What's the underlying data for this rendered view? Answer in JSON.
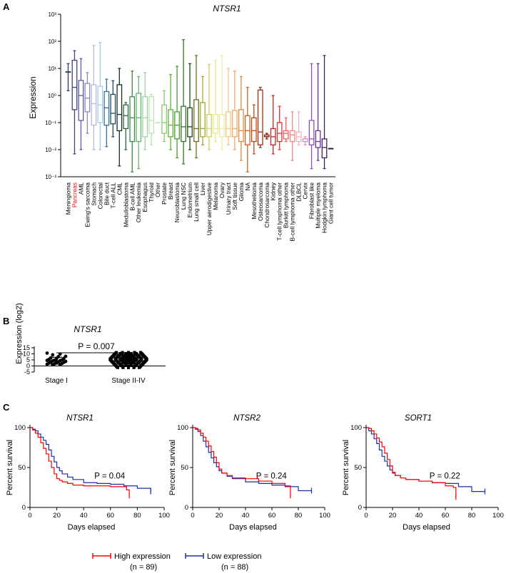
{
  "panel_labels": {
    "a": "A",
    "b": "B",
    "c": "C"
  },
  "chart_data": [
    {
      "type": "box",
      "title": "NTSR1",
      "ylabel": "Expression",
      "yscale": "log",
      "ylim": [
        0.001,
        1000
      ],
      "yticks": [
        "10⁻³",
        "10⁻²",
        "10⁻¹",
        "10⁰",
        "10¹",
        "10²",
        "10³"
      ],
      "highlight_category": "Pancreas",
      "highlight_color": "#ff0000",
      "categories": [
        {
          "name": "Meningioma",
          "color": "#2b3b5c",
          "min": 1.5,
          "q1": 7.5,
          "med": 7.5,
          "q3": 7.5,
          "max": 15
        },
        {
          "name": "Pancreas",
          "color": "#404080",
          "min": 0.007,
          "q1": 0.3,
          "med": 2,
          "q3": 20,
          "max": 45
        },
        {
          "name": "AML",
          "color": "#5c5a9a",
          "min": 0.01,
          "q1": 0.12,
          "med": 1.0,
          "q3": 3.6,
          "max": 23
        },
        {
          "name": "Ewing's sarcoma",
          "color": "#8a88c0",
          "min": 0.04,
          "q1": 0.25,
          "med": 0.8,
          "q3": 2.8,
          "max": 7
        },
        {
          "name": "Stomach",
          "color": "#b8b8e0",
          "min": 0.01,
          "q1": 0.08,
          "med": 0.5,
          "q3": 2.5,
          "max": 70
        },
        {
          "name": "Colorectal",
          "color": "#a8c8e8",
          "min": 0.01,
          "q1": 0.1,
          "med": 0.45,
          "q3": 2.2,
          "max": 90
        },
        {
          "name": "Bile duct",
          "color": "#2f6fa0",
          "min": 0.013,
          "q1": 0.08,
          "med": 0.35,
          "q3": 1.4,
          "max": 4
        },
        {
          "name": "T-cell ALL",
          "color": "#1f4a5f",
          "min": 0.03,
          "q1": 0.09,
          "med": 0.22,
          "q3": 1.1,
          "max": 3.5
        },
        {
          "name": "CML",
          "color": "#143020",
          "min": 0.0025,
          "q1": 0.05,
          "med": 0.2,
          "q3": 2.5,
          "max": 10
        },
        {
          "name": "Medulloblastoma",
          "color": "#2a6a3a",
          "min": 0.01,
          "q1": 0.06,
          "med": 0.18,
          "q3": 0.45,
          "max": 0.55
        },
        {
          "name": "B-cell AML",
          "color": "#3a8a4a",
          "min": 0.0015,
          "q1": 0.02,
          "med": 0.15,
          "q3": 0.9,
          "max": 8
        },
        {
          "name": "Other leukemia",
          "color": "#6ab070",
          "min": 0.002,
          "q1": 0.02,
          "med": 0.15,
          "q3": 1.2,
          "max": 5
        },
        {
          "name": "Esophagus",
          "color": "#9fd4a0",
          "min": 0.01,
          "q1": 0.03,
          "med": 0.15,
          "q3": 0.9,
          "max": 7
        },
        {
          "name": "Thyroid",
          "color": "#b8e4b0",
          "min": 0.015,
          "q1": 0.04,
          "med": 0.12,
          "q3": 0.9,
          "max": 1.1
        },
        {
          "name": "Other",
          "color": "#c8e8c0",
          "min": 0.1,
          "q1": 0.1,
          "med": 0.1,
          "q3": 0.1,
          "max": 0.1
        },
        {
          "name": "Prostate",
          "color": "#88cc70",
          "min": 0.02,
          "q1": 0.04,
          "med": 0.1,
          "q3": 0.45,
          "max": 1.5
        },
        {
          "name": "Breast",
          "color": "#60b040",
          "min": 0.01,
          "q1": 0.03,
          "med": 0.08,
          "q3": 0.3,
          "max": 6
        },
        {
          "name": "Neuroblastoma",
          "color": "#4a9a30",
          "min": 0.005,
          "q1": 0.025,
          "med": 0.08,
          "q3": 0.25,
          "max": 12
        },
        {
          "name": "Lung NSC",
          "color": "#2f7a20",
          "min": 0.003,
          "q1": 0.02,
          "med": 0.07,
          "q3": 0.4,
          "max": 115
        },
        {
          "name": "Endometrium",
          "color": "#1e4a18",
          "min": 0.01,
          "q1": 0.03,
          "med": 0.07,
          "q3": 0.35,
          "max": 15
        },
        {
          "name": "Lung small cell",
          "color": "#707020",
          "min": 0.005,
          "q1": 0.02,
          "med": 0.06,
          "q3": 0.7,
          "max": 30
        },
        {
          "name": "Liver",
          "color": "#a8a830",
          "min": 0.015,
          "q1": 0.03,
          "med": 0.06,
          "q3": 0.55,
          "max": 5
        },
        {
          "name": "Upper aerodigestive",
          "color": "#d0d060",
          "min": 0.01,
          "q1": 0.03,
          "med": 0.06,
          "q3": 0.2,
          "max": 14
        },
        {
          "name": "Melanoma",
          "color": "#e8e888",
          "min": 0.02,
          "q1": 0.04,
          "med": 0.06,
          "q3": 0.2,
          "max": 20
        },
        {
          "name": "Ovary",
          "color": "#f0e8a0",
          "min": 0.01,
          "q1": 0.03,
          "med": 0.06,
          "q3": 0.2,
          "max": 30
        },
        {
          "name": "Urinary tract",
          "color": "#f0c880",
          "min": 0.015,
          "q1": 0.03,
          "med": 0.06,
          "q3": 0.25,
          "max": 10
        },
        {
          "name": "Soft tissue",
          "color": "#f0a860",
          "min": 0.01,
          "q1": 0.03,
          "med": 0.06,
          "q3": 0.28,
          "max": 8
        },
        {
          "name": "Glioma",
          "color": "#e88840",
          "min": 0.004,
          "q1": 0.02,
          "med": 0.05,
          "q3": 0.3,
          "max": 5
        },
        {
          "name": "NA",
          "color": "#d06020",
          "min": 0.0015,
          "q1": 0.015,
          "med": 0.05,
          "q3": 0.18,
          "max": 2
        },
        {
          "name": "Mesothelioma",
          "color": "#c04810",
          "min": 0.007,
          "q1": 0.02,
          "med": 0.05,
          "q3": 0.15,
          "max": 0.45
        },
        {
          "name": "Osteosarcoma",
          "color": "#a03010",
          "min": 0.012,
          "q1": 0.015,
          "med": 0.045,
          "q3": 1.6,
          "max": 2
        },
        {
          "name": "Chondrosarcoma",
          "color": "#802000",
          "min": 0.025,
          "q1": 0.03,
          "med": 0.03,
          "q3": 0.035,
          "max": 0.04
        },
        {
          "name": "Kidney",
          "color": "#d02020",
          "min": 0.007,
          "q1": 0.015,
          "med": 0.03,
          "q3": 0.06,
          "max": 1
        },
        {
          "name": "T-cell lymphoma other",
          "color": "#e83030",
          "min": 0.01,
          "q1": 0.02,
          "med": 0.04,
          "q3": 0.1,
          "max": 0.4
        },
        {
          "name": "Burkitt lymphoma",
          "color": "#f06060",
          "min": 0.02,
          "q1": 0.025,
          "med": 0.04,
          "q3": 0.05,
          "max": 0.15
        },
        {
          "name": "B-cell lymphoma other",
          "color": "#f08888",
          "min": 0.004,
          "q1": 0.02,
          "med": 0.035,
          "q3": 0.05,
          "max": 0.25
        },
        {
          "name": "DLBCL",
          "color": "#f8b0b8",
          "min": 0.015,
          "q1": 0.02,
          "med": 0.03,
          "q3": 0.045,
          "max": 0.25
        },
        {
          "name": "Cervix",
          "color": "#e888c0",
          "min": 0.015,
          "q1": 0.02,
          "med": 0.025,
          "q3": 0.025,
          "max": 0.03
        },
        {
          "name": "Fibroblast like",
          "color": "#9050b0",
          "min": 0.002,
          "q1": 0.015,
          "med": 0.025,
          "q3": 0.12,
          "max": 15
        },
        {
          "name": "Multiple myeloma",
          "color": "#6a3090",
          "min": 0.004,
          "q1": 0.012,
          "med": 0.02,
          "q3": 0.05,
          "max": 15
        },
        {
          "name": "Hodgkin lymphoma",
          "color": "#402060",
          "min": 0.002,
          "q1": 0.005,
          "med": 0.012,
          "q3": 0.025,
          "max": 30
        },
        {
          "name": "Giant cell tumor",
          "color": "#202040",
          "min": 0.011,
          "q1": 0.011,
          "med": 0.011,
          "q3": 0.011,
          "max": 0.011
        }
      ]
    },
    {
      "type": "scatter",
      "title": "NTSR1",
      "ylabel": "Expression (log2)",
      "ylim": [
        -5,
        15
      ],
      "yticks": [
        "15",
        "10",
        "5",
        "0",
        "-5"
      ],
      "categories": [
        "Stage I",
        "Stage II-IV"
      ],
      "annotation": "P = 0.007",
      "summary": [
        {
          "group": "Stage I",
          "mean": 4.3,
          "sd_low": 1.5,
          "sd_high": 7.2
        },
        {
          "group": "Stage II-IV",
          "mean": 5.5,
          "sd_low": 3.0,
          "sd_high": 8.0
        }
      ],
      "stage1_points": [
        10.6,
        9.8,
        9.2,
        8.0,
        7.6,
        6.7,
        6.2,
        5.7,
        5.4,
        5.0,
        4.8,
        4.6,
        4.4,
        4.2,
        3.8,
        3.4,
        3.2,
        3.0,
        2.6,
        2.3,
        2.0,
        1.8,
        1.5,
        1.3,
        1.0
      ],
      "stage2_range": [
        -1.6,
        11.2
      ]
    },
    {
      "type": "line",
      "title": "NTSR1",
      "xlabel": "Days elapsed",
      "ylabel": "Percent survival",
      "xlim": [
        0,
        100
      ],
      "ylim": [
        0,
        100
      ],
      "xticks": [
        "0",
        "20",
        "40",
        "60",
        "80",
        "100"
      ],
      "yticks": [
        "100",
        "50",
        "0"
      ],
      "annotation": "P = 0.04",
      "series": [
        {
          "name": "High expression",
          "x": [
            0,
            2,
            4,
            6,
            8,
            10,
            12,
            14,
            16,
            18,
            20,
            22,
            24,
            28,
            32,
            40,
            50,
            60,
            70,
            72,
            74
          ],
          "values": [
            100,
            97,
            93,
            88,
            81,
            74,
            67,
            58,
            50,
            42,
            36,
            34,
            32,
            30,
            28,
            27,
            27,
            26,
            26,
            22,
            15
          ]
        },
        {
          "name": "Low expression",
          "x": [
            0,
            2,
            4,
            6,
            8,
            10,
            12,
            14,
            16,
            18,
            20,
            22,
            24,
            28,
            32,
            40,
            50,
            60,
            70,
            80,
            90
          ],
          "values": [
            100,
            98,
            96,
            92,
            88,
            84,
            79,
            72,
            64,
            57,
            50,
            46,
            42,
            38,
            35,
            31,
            30,
            29,
            27,
            24,
            20
          ]
        }
      ]
    },
    {
      "type": "line",
      "title": "NTSR2",
      "xlabel": "Days elapsed",
      "ylabel": "Percent survival",
      "xlim": [
        0,
        100
      ],
      "ylim": [
        0,
        100
      ],
      "xticks": [
        "0",
        "20",
        "40",
        "60",
        "80",
        "100"
      ],
      "yticks": [
        "100",
        "50",
        "0"
      ],
      "annotation": "P = 0.24",
      "series": [
        {
          "name": "High expression",
          "x": [
            0,
            2,
            4,
            6,
            8,
            10,
            12,
            14,
            16,
            18,
            20,
            22,
            26,
            30,
            40,
            50,
            60,
            70,
            74
          ],
          "values": [
            100,
            99,
            97,
            93,
            88,
            83,
            77,
            70,
            63,
            56,
            48,
            43,
            40,
            37,
            36,
            33,
            30,
            27,
            15
          ]
        },
        {
          "name": "Low expression",
          "x": [
            0,
            2,
            4,
            6,
            8,
            10,
            12,
            14,
            16,
            18,
            20,
            22,
            26,
            30,
            40,
            50,
            60,
            70,
            80,
            90
          ],
          "values": [
            100,
            98,
            95,
            90,
            83,
            76,
            69,
            62,
            56,
            51,
            46,
            43,
            39,
            36,
            32,
            30,
            28,
            26,
            21,
            21
          ]
        }
      ]
    },
    {
      "type": "line",
      "title": "SORT1",
      "xlabel": "Days elapsed",
      "ylabel": "Percent survival",
      "xlim": [
        0,
        100
      ],
      "ylim": [
        0,
        100
      ],
      "xticks": [
        "0",
        "20",
        "40",
        "60",
        "80",
        "100"
      ],
      "yticks": [
        "100",
        "50",
        "0"
      ],
      "annotation": "P = 0.22",
      "series": [
        {
          "name": "High expression",
          "x": [
            0,
            2,
            4,
            6,
            8,
            10,
            12,
            14,
            16,
            18,
            20,
            22,
            26,
            30,
            40,
            50,
            60,
            66,
            68
          ],
          "values": [
            100,
            99,
            96,
            92,
            87,
            82,
            76,
            68,
            60,
            52,
            44,
            40,
            37,
            35,
            33,
            31,
            27,
            25,
            13
          ]
        },
        {
          "name": "Low expression",
          "x": [
            0,
            2,
            4,
            6,
            8,
            10,
            12,
            14,
            16,
            18,
            20,
            22,
            26,
            30,
            40,
            50,
            60,
            70,
            80,
            90
          ],
          "values": [
            100,
            96,
            92,
            86,
            80,
            72,
            64,
            58,
            52,
            47,
            43,
            40,
            37,
            35,
            33,
            31,
            30,
            26,
            20,
            20
          ]
        }
      ]
    }
  ],
  "legend": {
    "items": [
      {
        "label": "High expression",
        "n": "(n = 89)",
        "color": "#ff0000"
      },
      {
        "label": "Low expression",
        "n": "(n = 88)",
        "color": "#1c2ea8"
      }
    ]
  }
}
